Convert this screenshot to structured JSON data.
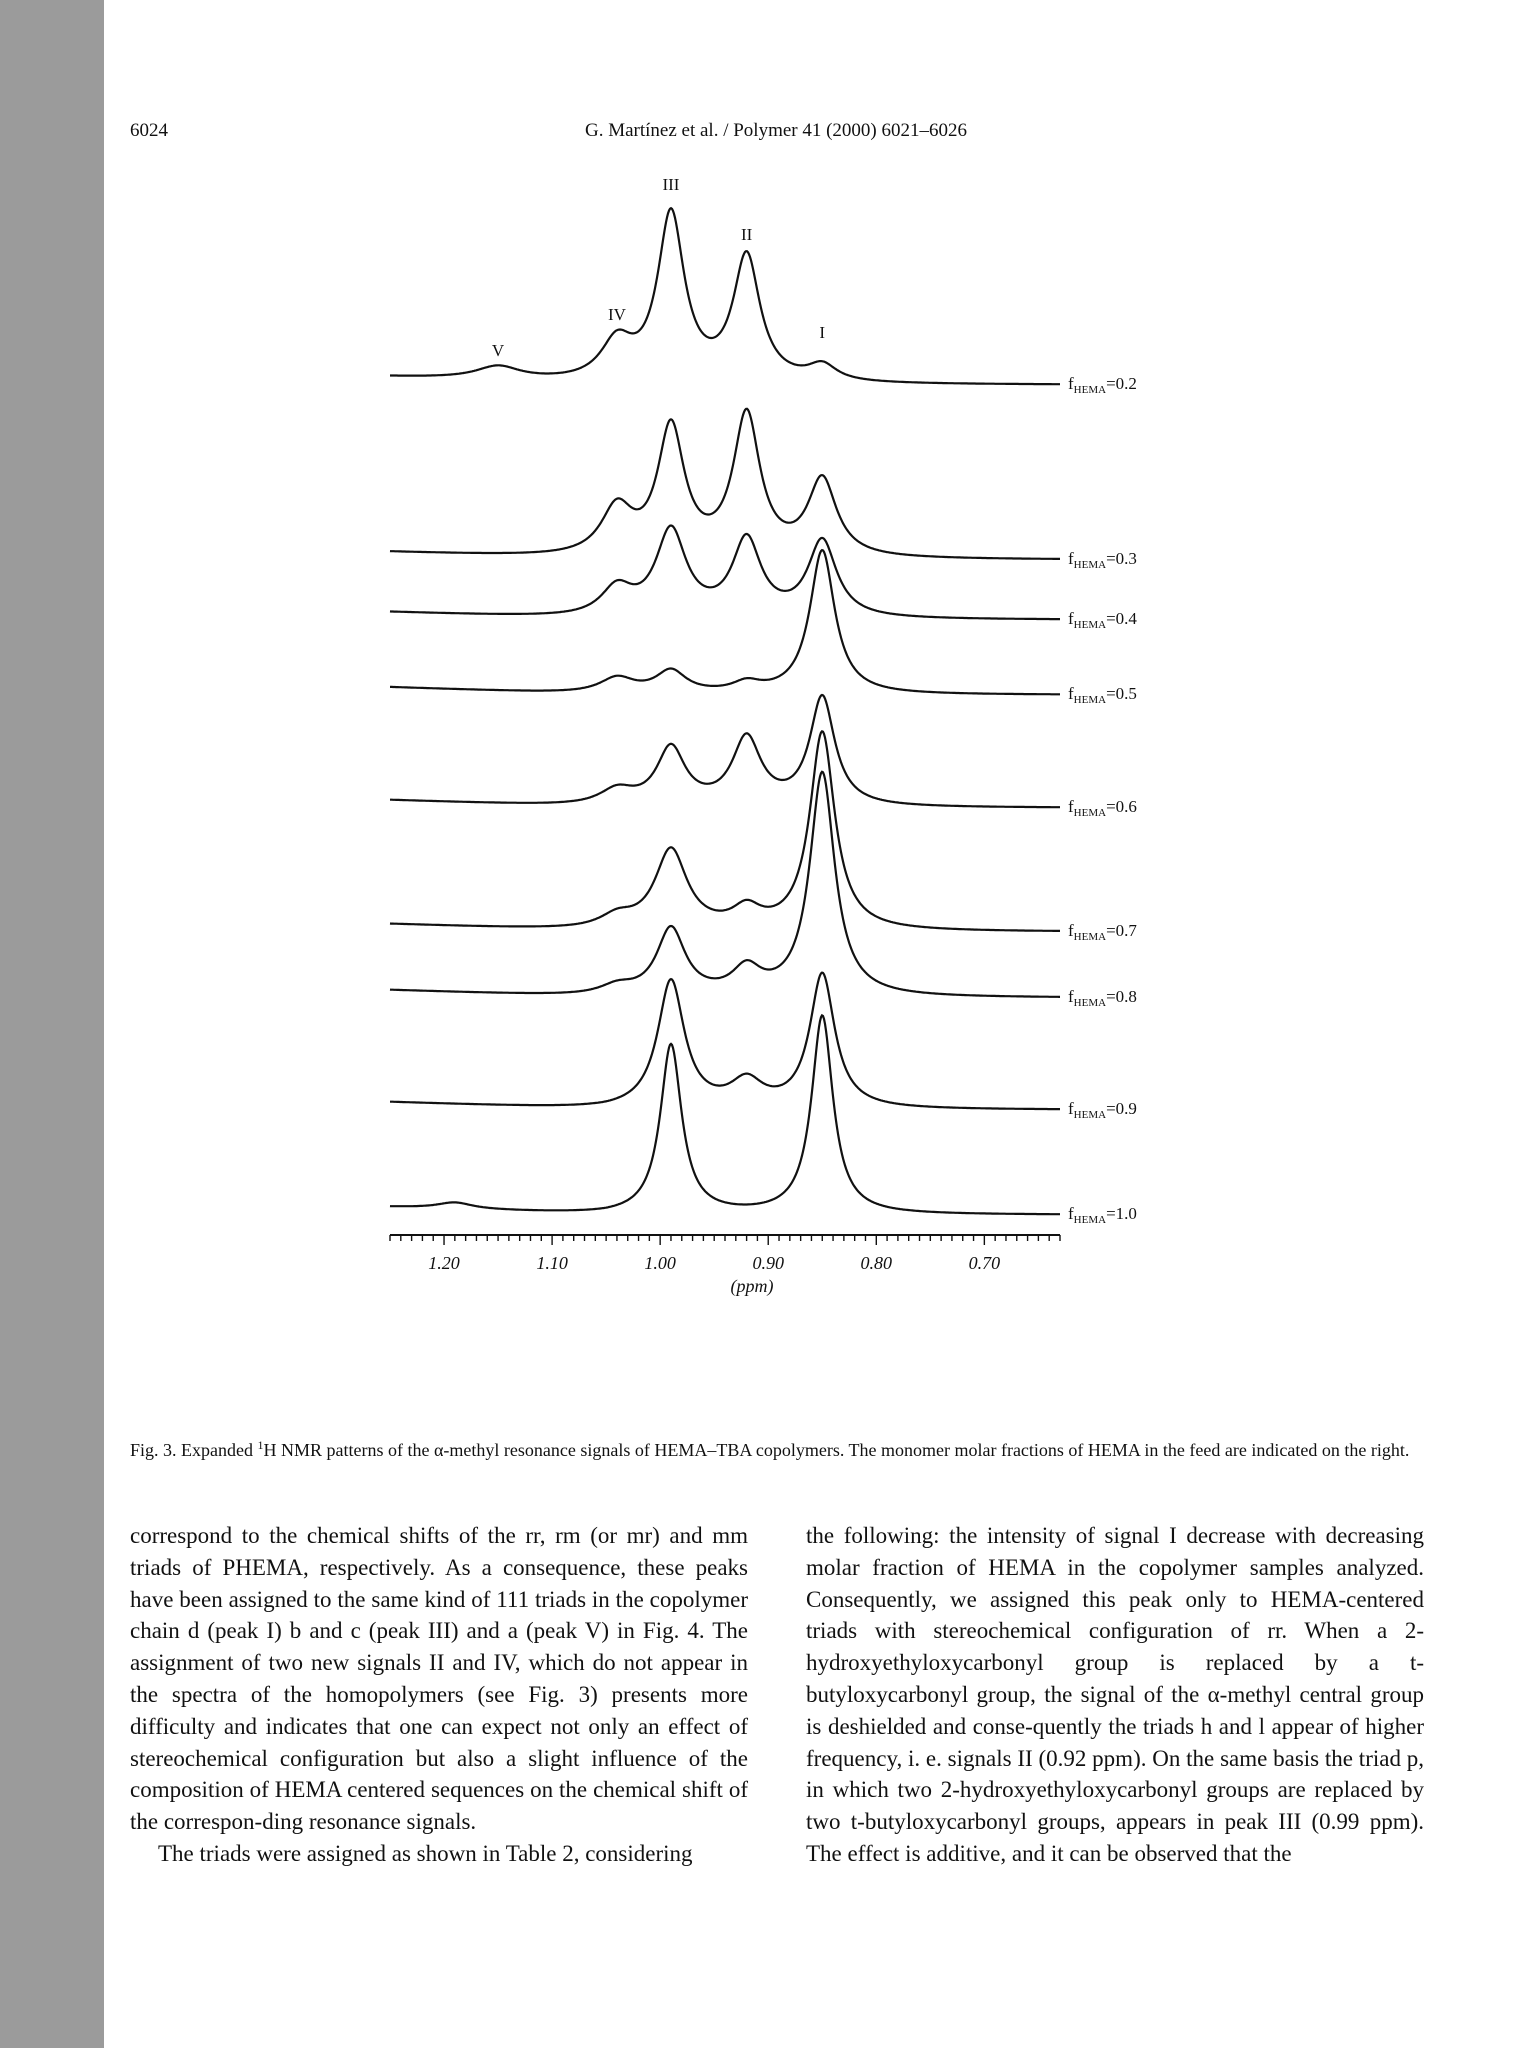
{
  "header": {
    "page_number": "6024",
    "journal_ref": "G. Martínez et al. / Polymer 41 (2000) 6021–6026"
  },
  "figure": {
    "peak_labels": [
      "III",
      "II",
      "IV",
      "I",
      "V"
    ],
    "x_tick_labels": [
      "1.20",
      "1.10",
      "1.00",
      "0.90",
      "0.80",
      "0.70"
    ],
    "x_axis_label": "(ppm)",
    "series_labels": [
      {
        "prefix": "f",
        "sub": "HEMA",
        "value": "=0.2"
      },
      {
        "prefix": "f",
        "sub": "HEMA",
        "value": "=0.3"
      },
      {
        "prefix": "f",
        "sub": "HEMA",
        "value": "=0.4"
      },
      {
        "prefix": "f",
        "sub": "HEMA",
        "value": "=0.5"
      },
      {
        "prefix": "f",
        "sub": "HEMA",
        "value": "=0.6"
      },
      {
        "prefix": "f",
        "sub": "HEMA",
        "value": "=0.7"
      },
      {
        "prefix": "f",
        "sub": "HEMA",
        "value": "=0.8"
      },
      {
        "prefix": "f",
        "sub": "HEMA",
        "value": "=0.9"
      },
      {
        "prefix": "f",
        "sub": "HEMA",
        "value": "=1.0"
      }
    ]
  },
  "caption": {
    "prefix": "Fig. 3. Expanded ",
    "sup": "1",
    "text": "H NMR patterns of the α-methyl resonance signals of HEMA–TBA copolymers. The monomer molar fractions of HEMA in the feed are indicated on the right."
  },
  "body": {
    "left_col": [
      "correspond to the chemical shifts of the rr, rm (or mr) and mm triads of PHEMA, respectively. As a consequence, these peaks have been assigned to the same kind of 111 triads in the copolymer chain d (peak I) b and c (peak III) and a (peak V) in Fig. 4. The assignment of two new signals II and IV, which do not appear in the spectra of the homopolymers (see Fig. 3) presents more difficulty and indicates that one can expect not only an effect of stereochemical configuration but also a slight influence of the composition of HEMA centered sequences on the chemical shift of the correspon-ding resonance signals.",
      "The triads were assigned as shown in Table 2, considering"
    ],
    "right_col": [
      "the following: the intensity of signal I decrease with decreasing molar fraction of HEMA in the copolymer samples analyzed. Consequently, we assigned this peak only to HEMA-centered triads with stereochemical configuration of rr. When a 2-hydroxyethyloxycarbonyl group is replaced by a t-butyloxycarbonyl group, the signal of the α-methyl central group is deshielded and conse-quently the triads h and l appear of higher frequency, i. e. signals II (0.92 ppm). On the same basis the triad p, in which two 2-hydroxyethyloxycarbonyl groups are replaced by two t-butyloxycarbonyl groups, appears in peak III (0.99 ppm). The effect is additive, and it can be observed that the"
    ]
  },
  "chart_data": {
    "type": "line",
    "x_axis": {
      "label": "(ppm)",
      "reversed": true,
      "range": [
        1.25,
        0.63
      ]
    },
    "x_ticks": [
      1.2,
      1.1,
      1.0,
      0.9,
      0.8,
      0.7
    ],
    "peak_positions_ppm": {
      "V": 1.15,
      "IV": 1.04,
      "III": 0.99,
      "II": 0.92,
      "I": 0.85
    },
    "series": [
      {
        "name": "fHEMA=0.2",
        "peaks": [
          {
            "x": 1.15,
            "h": 0.04,
            "w": 0.025
          },
          {
            "x": 1.04,
            "h": 0.12,
            "w": 0.018
          },
          {
            "x": 0.99,
            "h": 0.52,
            "w": 0.015
          },
          {
            "x": 0.92,
            "h": 0.39,
            "w": 0.015
          },
          {
            "x": 0.85,
            "h": 0.05,
            "w": 0.016
          }
        ]
      },
      {
        "name": "fHEMA=0.3",
        "peaks": [
          {
            "x": 1.04,
            "h": 0.15,
            "w": 0.018
          },
          {
            "x": 0.99,
            "h": 0.4,
            "w": 0.015
          },
          {
            "x": 0.92,
            "h": 0.44,
            "w": 0.015
          },
          {
            "x": 0.85,
            "h": 0.24,
            "w": 0.016
          }
        ]
      },
      {
        "name": "fHEMA=0.4",
        "peaks": [
          {
            "x": 1.04,
            "h": 0.09,
            "w": 0.018
          },
          {
            "x": 0.99,
            "h": 0.27,
            "w": 0.017
          },
          {
            "x": 0.92,
            "h": 0.24,
            "w": 0.016
          },
          {
            "x": 0.85,
            "h": 0.24,
            "w": 0.016
          }
        ]
      },
      {
        "name": "fHEMA=0.5",
        "peaks": [
          {
            "x": 1.04,
            "h": 0.05,
            "w": 0.02
          },
          {
            "x": 0.99,
            "h": 0.07,
            "w": 0.017
          },
          {
            "x": 0.92,
            "h": 0.03,
            "w": 0.016
          },
          {
            "x": 0.85,
            "h": 0.45,
            "w": 0.014
          }
        ]
      },
      {
        "name": "fHEMA=0.6",
        "peaks": [
          {
            "x": 1.04,
            "h": 0.05,
            "w": 0.02
          },
          {
            "x": 0.99,
            "h": 0.18,
            "w": 0.016
          },
          {
            "x": 0.92,
            "h": 0.21,
            "w": 0.016
          },
          {
            "x": 0.85,
            "h": 0.34,
            "w": 0.014
          }
        ]
      },
      {
        "name": "fHEMA=0.7",
        "peaks": [
          {
            "x": 1.04,
            "h": 0.04,
            "w": 0.02
          },
          {
            "x": 0.99,
            "h": 0.25,
            "w": 0.018
          },
          {
            "x": 0.92,
            "h": 0.06,
            "w": 0.016
          },
          {
            "x": 0.85,
            "h": 0.62,
            "w": 0.014
          }
        ]
      },
      {
        "name": "fHEMA=0.8",
        "peaks": [
          {
            "x": 1.04,
            "h": 0.03,
            "w": 0.02
          },
          {
            "x": 0.99,
            "h": 0.21,
            "w": 0.016
          },
          {
            "x": 0.92,
            "h": 0.08,
            "w": 0.016
          },
          {
            "x": 0.85,
            "h": 0.7,
            "w": 0.014
          }
        ]
      },
      {
        "name": "fHEMA=0.9",
        "peaks": [
          {
            "x": 0.99,
            "h": 0.4,
            "w": 0.015
          },
          {
            "x": 0.92,
            "h": 0.08,
            "w": 0.018
          },
          {
            "x": 0.85,
            "h": 0.42,
            "w": 0.014
          }
        ]
      },
      {
        "name": "fHEMA=1.0",
        "peaks": [
          {
            "x": 1.19,
            "h": 0.02,
            "w": 0.02
          },
          {
            "x": 0.99,
            "h": 0.53,
            "w": 0.012
          },
          {
            "x": 0.85,
            "h": 0.62,
            "w": 0.012
          }
        ]
      }
    ]
  }
}
